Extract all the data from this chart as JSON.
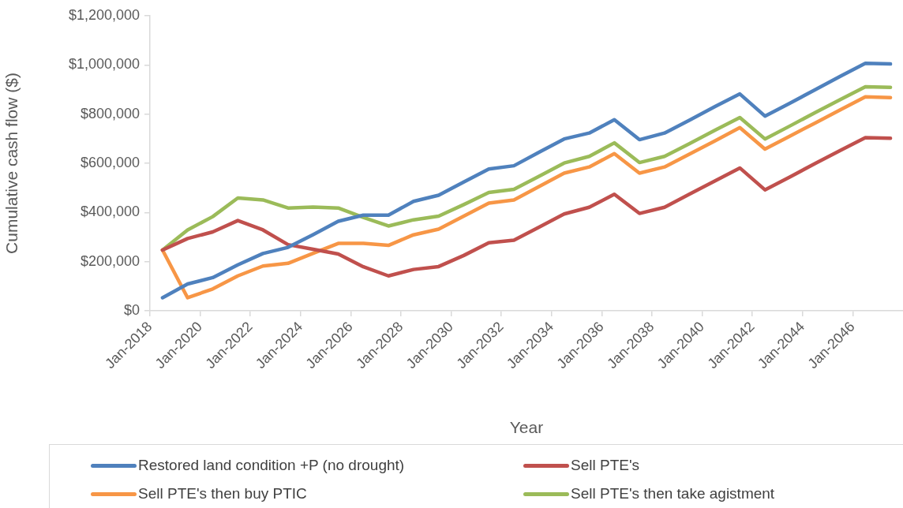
{
  "chart_data": {
    "type": "line",
    "xlabel": "Year",
    "ylabel": "Cumulative cash flow ($)",
    "x": [
      "2018-07",
      "2019-07",
      "2020-07",
      "2021-07",
      "2022-07",
      "2023-07",
      "2024-07",
      "2025-07",
      "2026-07",
      "2027-07",
      "2028-07",
      "2029-07",
      "2030-07",
      "2031-07",
      "2032-07",
      "2033-07",
      "2034-07",
      "2035-07",
      "2036-07",
      "2037-07",
      "2038-07",
      "2039-07",
      "2040-07",
      "2041-07",
      "2042-07",
      "2043-07",
      "2044-07",
      "2045-07",
      "2046-07",
      "2047-07"
    ],
    "series": [
      {
        "name": "Restored land condition +P (no drought)",
        "color": "#4f81bd",
        "values": [
          53000,
          109000,
          135000,
          187000,
          233000,
          258000,
          310000,
          364000,
          389000,
          389000,
          445000,
          470000,
          524000,
          577000,
          590000,
          645000,
          699000,
          723000,
          777000,
          696000,
          723000,
          776000,
          830000,
          882000,
          792000,
          845000,
          899000,
          954000,
          1007000,
          1004000
        ]
      },
      {
        "name": "Sell PTE's",
        "color": "#c0504d",
        "values": [
          247000,
          294000,
          321000,
          367000,
          329000,
          269000,
          250000,
          231000,
          179000,
          142000,
          168000,
          180000,
          225000,
          277000,
          287000,
          340000,
          394000,
          421000,
          474000,
          396000,
          421000,
          475000,
          528000,
          581000,
          492000,
          545000,
          599000,
          652000,
          704000,
          702000
        ]
      },
      {
        "name": "Sell PTE's then buy PTIC",
        "color": "#f79646",
        "values": [
          247000,
          53000,
          89000,
          142000,
          182000,
          193000,
          234000,
          274000,
          274000,
          266000,
          309000,
          332000,
          385000,
          438000,
          451000,
          505000,
          560000,
          585000,
          639000,
          560000,
          585000,
          638000,
          691000,
          745000,
          658000,
          711000,
          764000,
          817000,
          870000,
          867000
        ]
      },
      {
        "name": "Sell PTE's then take agistment",
        "color": "#9bbb59",
        "values": [
          247000,
          329000,
          383000,
          459000,
          451000,
          418000,
          422000,
          418000,
          380000,
          345000,
          370000,
          385000,
          432000,
          481000,
          494000,
          547000,
          601000,
          628000,
          683000,
          603000,
          628000,
          680000,
          734000,
          786000,
          699000,
          752000,
          806000,
          859000,
          911000,
          909000
        ]
      }
    ],
    "xlim": [
      "2018-01",
      "2048-01"
    ],
    "xticks": [
      {
        "value": "2018-01",
        "label": "Jan-2018"
      },
      {
        "value": "2020-01",
        "label": "Jan-2020"
      },
      {
        "value": "2022-01",
        "label": "Jan-2022"
      },
      {
        "value": "2024-01",
        "label": "Jan-2024"
      },
      {
        "value": "2026-01",
        "label": "Jan-2026"
      },
      {
        "value": "2028-01",
        "label": "Jan-2028"
      },
      {
        "value": "2030-01",
        "label": "Jan-2030"
      },
      {
        "value": "2032-01",
        "label": "Jan-2032"
      },
      {
        "value": "2034-01",
        "label": "Jan-2034"
      },
      {
        "value": "2036-01",
        "label": "Jan-2036"
      },
      {
        "value": "2038-01",
        "label": "Jan-2038"
      },
      {
        "value": "2040-01",
        "label": "Jan-2040"
      },
      {
        "value": "2042-01",
        "label": "Jan-2042"
      },
      {
        "value": "2044-01",
        "label": "Jan-2044"
      },
      {
        "value": "2046-01",
        "label": "Jan-2046"
      }
    ],
    "ylim": [
      0,
      1200000
    ],
    "yticks": [
      {
        "value": 0,
        "label": "$0"
      },
      {
        "value": 200000,
        "label": "$200,000"
      },
      {
        "value": 400000,
        "label": "$400,000"
      },
      {
        "value": 600000,
        "label": "$600,000"
      },
      {
        "value": 800000,
        "label": "$800,000"
      },
      {
        "value": 1000000,
        "label": "$1,000,000"
      },
      {
        "value": 1200000,
        "label": "$1,200,000"
      }
    ],
    "grid": false,
    "legend": "bottom",
    "marker": "none",
    "line_style": "solid"
  }
}
